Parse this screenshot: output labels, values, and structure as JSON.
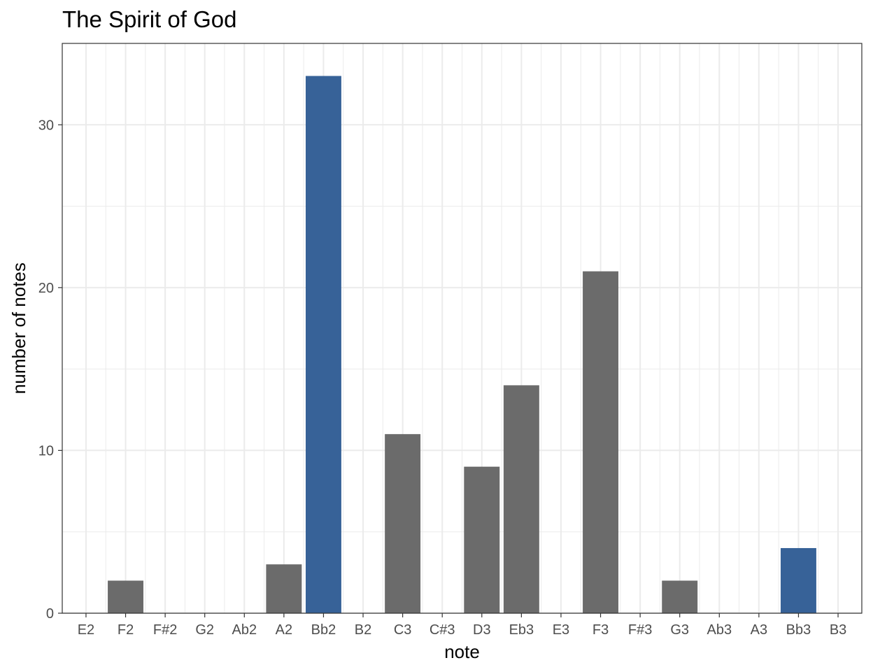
{
  "chart_data": {
    "type": "bar",
    "title": "The Spirit of God",
    "xlabel": "note",
    "ylabel": "number of notes",
    "categories": [
      "E2",
      "F2",
      "F#2",
      "G2",
      "Ab2",
      "A2",
      "Bb2",
      "B2",
      "C3",
      "C#3",
      "D3",
      "Eb3",
      "E3",
      "F3",
      "F#3",
      "G3",
      "Ab3",
      "A3",
      "Bb3",
      "B3"
    ],
    "values": [
      0,
      2,
      0,
      0,
      0,
      3,
      33,
      0,
      11,
      0,
      9,
      14,
      0,
      21,
      0,
      2,
      0,
      0,
      4,
      0
    ],
    "highlighted": [
      "Bb2",
      "Bb3"
    ],
    "ylim": [
      0,
      35
    ],
    "yticks": [
      0,
      10,
      20,
      30
    ],
    "grid": true,
    "legend": "none",
    "colors": {
      "bar": "#6b6b6b",
      "highlight": "#376298",
      "grid": "#ebebeb",
      "panel_border": "#333333"
    }
  }
}
